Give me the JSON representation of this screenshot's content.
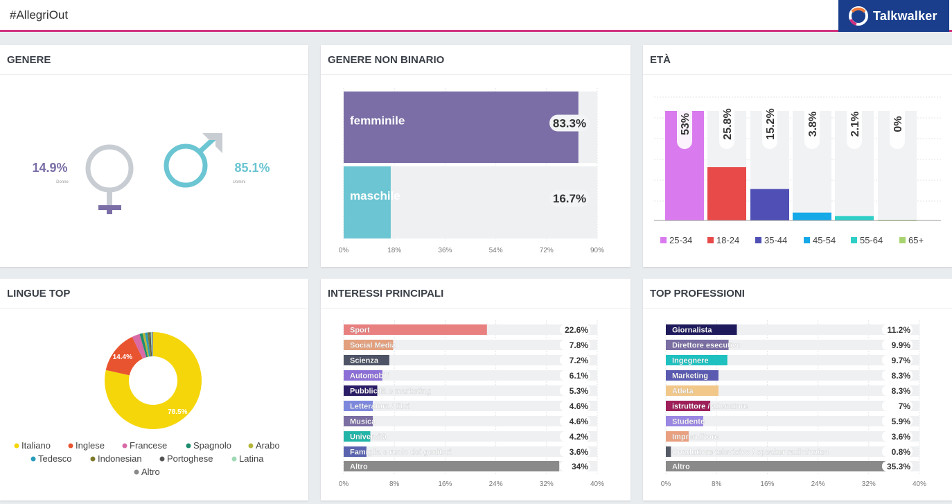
{
  "header": {
    "query": "#AllegriOut",
    "brand": "Talkwalker"
  },
  "colors": {
    "accent": "#d1307e",
    "brand_bg": "#1a3e8c"
  },
  "panels": {
    "genere": {
      "title": "GENERE",
      "female_pct": "14.9%",
      "female_label": "Donne",
      "male_pct": "85.1%",
      "male_label": "Uomini",
      "female_icon": "female-symbol-icon",
      "male_icon": "male-symbol-icon"
    },
    "genere_nb": {
      "title": "GENERE NON BINARIO"
    },
    "eta": {
      "title": "ETÀ"
    },
    "lingue": {
      "title": "LINGUE TOP"
    },
    "interessi": {
      "title": "INTERESSI PRINCIPALI"
    },
    "professioni": {
      "title": "TOP PROFESSIONI"
    }
  },
  "chart_data": [
    {
      "id": "genere_nb",
      "type": "bar",
      "orientation": "horizontal",
      "categories": [
        "femminile",
        "maschile"
      ],
      "values": [
        83.3,
        16.7
      ],
      "value_labels": [
        "83.3%",
        "16.7%"
      ],
      "colors": [
        "#7b6ea6",
        "#6bc5d2"
      ],
      "xlim": [
        0,
        90
      ],
      "xticks": [
        "0%",
        "18%",
        "36%",
        "54%",
        "72%",
        "90%"
      ]
    },
    {
      "id": "eta",
      "type": "bar",
      "orientation": "vertical",
      "categories": [
        "25-34",
        "18-24",
        "35-44",
        "45-54",
        "55-64",
        "65+"
      ],
      "values": [
        53,
        25.8,
        15.2,
        3.8,
        2.1,
        0
      ],
      "value_labels": [
        "53%",
        "25.8%",
        "15.2%",
        "3.8%",
        "2.1%",
        "0%"
      ],
      "colors": [
        "#d97bee",
        "#e84a4a",
        "#4f4fb5",
        "#16a9e8",
        "#2ecfc6",
        "#a8d46f"
      ],
      "ylim": [
        0,
        53
      ],
      "legend": "bottom"
    },
    {
      "id": "lingue",
      "type": "pie",
      "donut": true,
      "categories": [
        "Italiano",
        "Inglese",
        "Francese",
        "Spagnolo",
        "Arabo",
        "Tedesco",
        "Indonesian",
        "Portoghese",
        "Latina",
        "Altro"
      ],
      "values": [
        78.5,
        14.4,
        2.6,
        1.0,
        0.8,
        0.8,
        0.6,
        0.5,
        0.4,
        0.4
      ],
      "slice_labels": [
        "78.5%",
        "14.4%",
        "",
        "",
        "",
        "",
        "",
        "",
        "",
        ""
      ],
      "colors": [
        "#f5d60a",
        "#e8542f",
        "#d86aa6",
        "#1e8c6e",
        "#b5b53a",
        "#2a9dbb",
        "#7d7a2e",
        "#555555",
        "#9ed9b5",
        "#8a8a8a"
      ],
      "legend": "bottom"
    },
    {
      "id": "interessi",
      "type": "bar",
      "orientation": "horizontal",
      "categories": [
        "Sport",
        "Social Media",
        "Scienza",
        "Automobili",
        "Pubblicità e marketing",
        "Letteratura / libri",
        "Musica",
        "Università",
        "Famiglia e ruolo dei genitori",
        "Altro"
      ],
      "values": [
        22.6,
        7.8,
        7.2,
        6.1,
        5.3,
        4.6,
        4.6,
        4.2,
        3.6,
        34
      ],
      "value_labels": [
        "22.6%",
        "7.8%",
        "7.2%",
        "6.1%",
        "5.3%",
        "4.6%",
        "4.6%",
        "4.2%",
        "3.6%",
        "34%"
      ],
      "colors": [
        "#e88080",
        "#e3a07e",
        "#4e5466",
        "#8b6fd6",
        "#2b1d66",
        "#7d88dd",
        "#7a6ea3",
        "#22b5a8",
        "#5a63b0",
        "#8a8a8a"
      ],
      "xlim": [
        0,
        40
      ],
      "xticks": [
        "0%",
        "8%",
        "16%",
        "24%",
        "32%",
        "40%"
      ]
    },
    {
      "id": "professioni",
      "type": "bar",
      "orientation": "horizontal",
      "categories": [
        "Giornalista",
        "Direttore esecutivo",
        "Ingegnere",
        "Marketing",
        "Atleta",
        "istruttore / allenatore",
        "Studente",
        "Imprenditore",
        "Conduttore televisivo / speaker radiofonico",
        "Altro"
      ],
      "values": [
        11.2,
        9.9,
        9.7,
        8.3,
        8.3,
        7,
        5.9,
        3.6,
        0.8,
        35.3
      ],
      "value_labels": [
        "11.2%",
        "9.9%",
        "9.7%",
        "8.3%",
        "8.3%",
        "7%",
        "5.9%",
        "3.6%",
        "0.8%",
        "35.3%"
      ],
      "colors": [
        "#1f1a5c",
        "#7a6ea3",
        "#1ec1bf",
        "#5a5ab0",
        "#f1c88a",
        "#9e1f5a",
        "#9a86e3",
        "#e9a080",
        "#555a66",
        "#8a8a8a"
      ],
      "xlim": [
        0,
        40
      ],
      "xticks": [
        "0%",
        "8%",
        "16%",
        "24%",
        "32%",
        "40%"
      ]
    }
  ]
}
